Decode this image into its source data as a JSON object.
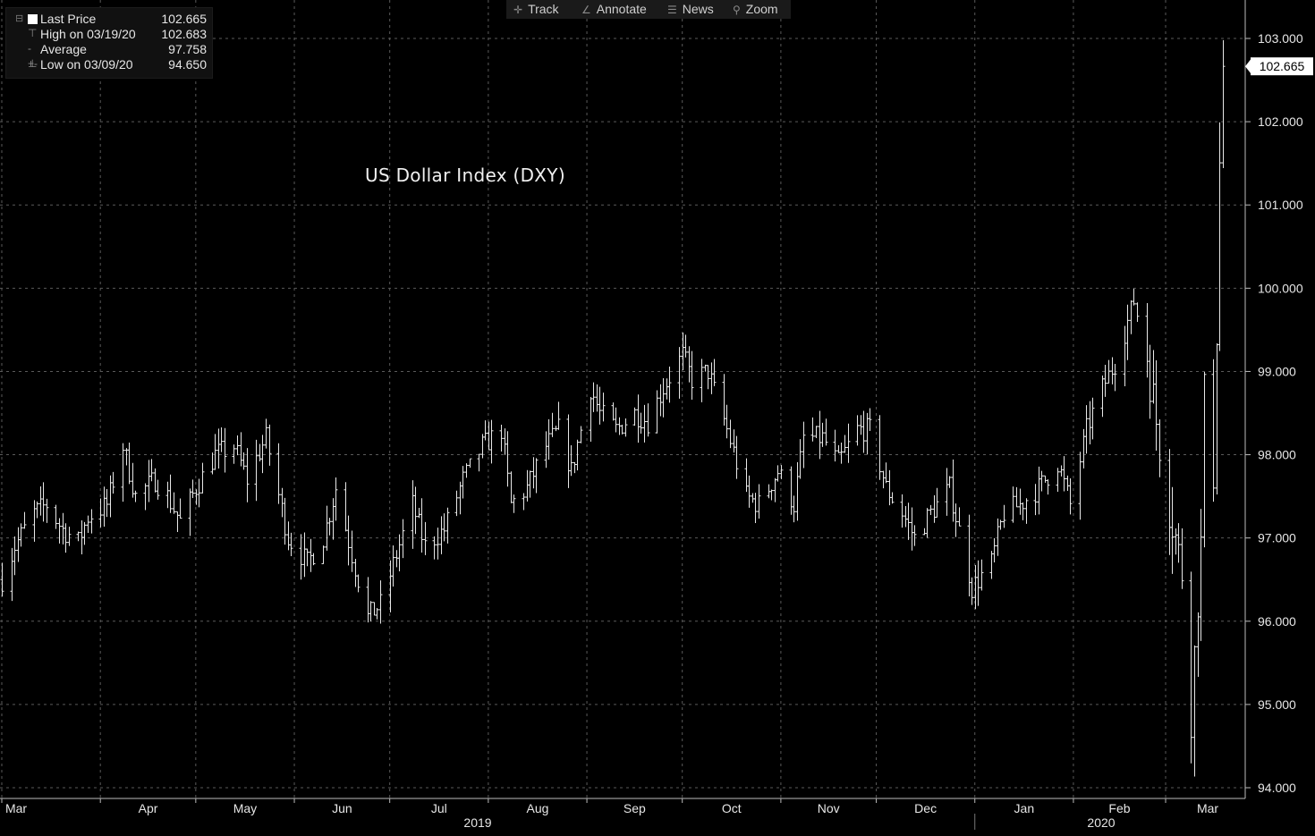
{
  "toolbar": {
    "track_label": "Track",
    "annotate_label": "Annotate",
    "news_label": "News",
    "zoom_label": "Zoom"
  },
  "legend": {
    "last_label": "Last Price",
    "last_value": "102.665",
    "high_label": "High on 03/19/20",
    "high_value": "102.683",
    "avg_label": "Average",
    "avg_value": "97.758",
    "low_label": "Low on 03/09/20",
    "low_value": "94.650"
  },
  "chart_data": {
    "type": "ohlc",
    "title": "US Dollar Index (DXY)",
    "ylim": [
      94.0,
      103.0
    ],
    "y_ticks": [
      "94.000",
      "95.000",
      "96.000",
      "97.000",
      "98.000",
      "99.000",
      "100.000",
      "101.000",
      "102.000",
      "103.000"
    ],
    "x_months": [
      "Mar",
      "Apr",
      "May",
      "Jun",
      "Jul",
      "Aug",
      "Sep",
      "Oct",
      "Nov",
      "Dec",
      "Jan",
      "Feb",
      "Mar"
    ],
    "x_years": [
      "2019",
      "2020"
    ],
    "last_price_label": "102.665",
    "last_price": 102.665,
    "grid": true,
    "colors": {
      "background": "#000000",
      "bars": "#e8e8e8",
      "grid": "#5a5a5a",
      "text": "#e6e6e6"
    },
    "anchors": [
      {
        "date": "2019-03-01",
        "close": 96.5
      },
      {
        "date": "2019-03-05",
        "close": 96.9
      },
      {
        "date": "2019-03-11",
        "close": 97.3
      },
      {
        "date": "2019-03-15",
        "close": 97.4
      },
      {
        "date": "2019-03-20",
        "close": 97.1
      },
      {
        "date": "2019-03-25",
        "close": 96.95
      },
      {
        "date": "2019-03-28",
        "close": 97.25
      },
      {
        "date": "2019-04-03",
        "close": 97.4
      },
      {
        "date": "2019-04-08",
        "close": 98.1
      },
      {
        "date": "2019-04-12",
        "close": 97.5
      },
      {
        "date": "2019-04-18",
        "close": 97.7
      },
      {
        "date": "2019-04-22",
        "close": 97.5
      },
      {
        "date": "2019-04-26",
        "close": 97.2
      },
      {
        "date": "2019-05-01",
        "close": 97.6
      },
      {
        "date": "2019-05-07",
        "close": 98.0
      },
      {
        "date": "2019-05-13",
        "close": 98.1
      },
      {
        "date": "2019-05-17",
        "close": 97.7
      },
      {
        "date": "2019-05-23",
        "close": 98.2
      },
      {
        "date": "2019-05-30",
        "close": 97.0
      },
      {
        "date": "2019-06-05",
        "close": 96.7
      },
      {
        "date": "2019-06-10",
        "close": 97.0
      },
      {
        "date": "2019-06-14",
        "close": 97.6
      },
      {
        "date": "2019-06-19",
        "close": 96.8
      },
      {
        "date": "2019-06-24",
        "close": 96.05
      },
      {
        "date": "2019-06-28",
        "close": 96.2
      },
      {
        "date": "2019-07-03",
        "close": 96.8
      },
      {
        "date": "2019-07-08",
        "close": 97.4
      },
      {
        "date": "2019-07-12",
        "close": 96.9
      },
      {
        "date": "2019-07-18",
        "close": 97.1
      },
      {
        "date": "2019-07-24",
        "close": 97.7
      },
      {
        "date": "2019-07-30",
        "close": 98.1
      },
      {
        "date": "2019-08-05",
        "close": 98.3
      },
      {
        "date": "2019-08-08",
        "close": 97.4
      },
      {
        "date": "2019-08-13",
        "close": 97.6
      },
      {
        "date": "2019-08-19",
        "close": 98.1
      },
      {
        "date": "2019-08-23",
        "close": 98.3
      },
      {
        "date": "2019-08-27",
        "close": 97.8
      },
      {
        "date": "2019-09-02",
        "close": 98.8
      },
      {
        "date": "2019-09-05",
        "close": 98.5
      },
      {
        "date": "2019-09-10",
        "close": 98.3
      },
      {
        "date": "2019-09-16",
        "close": 98.5
      },
      {
        "date": "2019-09-20",
        "close": 98.4
      },
      {
        "date": "2019-09-25",
        "close": 98.8
      },
      {
        "date": "2019-10-01",
        "close": 99.2
      },
      {
        "date": "2019-10-04",
        "close": 98.9
      },
      {
        "date": "2019-10-09",
        "close": 99.0
      },
      {
        "date": "2019-10-15",
        "close": 98.3
      },
      {
        "date": "2019-10-21",
        "close": 97.5
      },
      {
        "date": "2019-10-25",
        "close": 97.4
      },
      {
        "date": "2019-10-31",
        "close": 97.8
      },
      {
        "date": "2019-11-05",
        "close": 97.4
      },
      {
        "date": "2019-11-08",
        "close": 98.2
      },
      {
        "date": "2019-11-14",
        "close": 98.2
      },
      {
        "date": "2019-11-19",
        "close": 97.9
      },
      {
        "date": "2019-11-25",
        "close": 98.3
      },
      {
        "date": "2019-11-29",
        "close": 98.3
      },
      {
        "date": "2019-12-04",
        "close": 97.6
      },
      {
        "date": "2019-12-09",
        "close": 97.3
      },
      {
        "date": "2019-12-13",
        "close": 97.0
      },
      {
        "date": "2019-12-18",
        "close": 97.3
      },
      {
        "date": "2019-12-24",
        "close": 97.6
      },
      {
        "date": "2019-12-31",
        "close": 96.4
      },
      {
        "date": "2020-01-06",
        "close": 96.7
      },
      {
        "date": "2020-01-10",
        "close": 97.3
      },
      {
        "date": "2020-01-15",
        "close": 97.4
      },
      {
        "date": "2020-01-21",
        "close": 97.6
      },
      {
        "date": "2020-01-27",
        "close": 97.9
      },
      {
        "date": "2020-01-31",
        "close": 97.4
      },
      {
        "date": "2020-02-05",
        "close": 98.3
      },
      {
        "date": "2020-02-10",
        "close": 98.8
      },
      {
        "date": "2020-02-14",
        "close": 99.1
      },
      {
        "date": "2020-02-20",
        "close": 99.85
      },
      {
        "date": "2020-02-24",
        "close": 99.2
      },
      {
        "date": "2020-02-27",
        "close": 98.4
      },
      {
        "date": "2020-03-02",
        "close": 97.4
      },
      {
        "date": "2020-03-06",
        "close": 96.6
      },
      {
        "date": "2020-03-09",
        "close": 94.9
      },
      {
        "date": "2020-03-11",
        "close": 96.3
      },
      {
        "date": "2020-03-12",
        "close": 96.9
      },
      {
        "date": "2020-03-13",
        "close": 98.7
      },
      {
        "date": "2020-03-16",
        "close": 97.8
      },
      {
        "date": "2020-03-17",
        "close": 99.5
      },
      {
        "date": "2020-03-18",
        "close": 101.5
      },
      {
        "date": "2020-03-19",
        "close": 102.665
      }
    ]
  }
}
